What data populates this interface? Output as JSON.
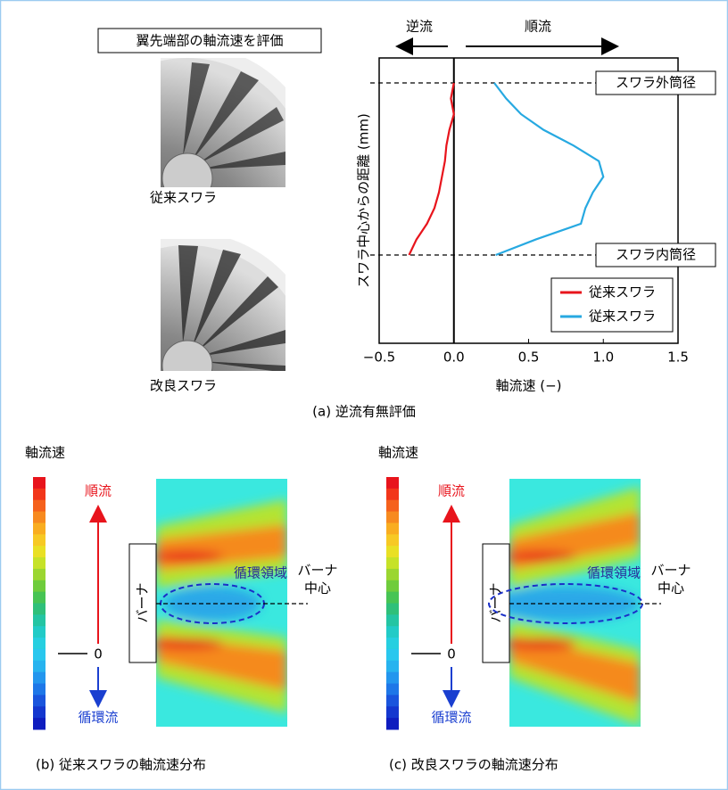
{
  "chart_data": {
    "type": "line",
    "orientation": "horizontal",
    "categories": [
      null,
      null,
      null,
      null,
      null,
      null,
      null,
      null,
      null,
      null,
      null,
      null
    ],
    "series": [
      {
        "name": "従来スワラ",
        "color": "#e8141c",
        "values": [
          0.0,
          -0.02,
          0.0,
          -0.03,
          -0.05,
          -0.06,
          -0.08,
          -0.1,
          -0.13,
          -0.18,
          -0.25,
          -0.3
        ]
      },
      {
        "name": "従来スワラ",
        "color": "#27a9e1",
        "values": [
          0.27,
          0.35,
          0.45,
          0.6,
          0.8,
          0.97,
          1.0,
          0.93,
          0.88,
          0.85,
          0.55,
          0.28
        ]
      }
    ],
    "x_label": "軸流速 (−)",
    "y_label": "スワラ中心からの距離 (mm)",
    "xlim": [
      -0.5,
      1.5
    ],
    "xticks": [
      {
        "value": -0.5,
        "label": "−0.5"
      },
      {
        "value": 0,
        "label": "0.0"
      },
      0.5,
      {
        "value": 1,
        "label": "1.0"
      },
      1.5
    ],
    "legend": "lower right",
    "annotations": {
      "reverse": "逆流",
      "forward": "順流",
      "outer": "スワラ外筒径",
      "inner": "スワラ内筒径"
    }
  },
  "left": {
    "box": "翼先端部の軸流速を評価",
    "img1": "従来スワラ",
    "img2": "改良スワラ",
    "caption": "(a) 逆流有無評価"
  },
  "panels": [
    {
      "scale": "軸流速",
      "forward": "順流",
      "zero": "0",
      "reverse": "循環流",
      "burner": "バーナ",
      "region": "循環領域",
      "center1": "バーナ",
      "center2": "中心",
      "caption": "(b) 従来スワラの軸流速分布"
    },
    {
      "scale": "軸流速",
      "forward": "順流",
      "zero": "0",
      "reverse": "循環流",
      "burner": "バーナ",
      "region": "循環領域",
      "center1": "バーナ",
      "center2": "中心",
      "caption": "(c) 改良スワラの軸流速分布"
    }
  ]
}
